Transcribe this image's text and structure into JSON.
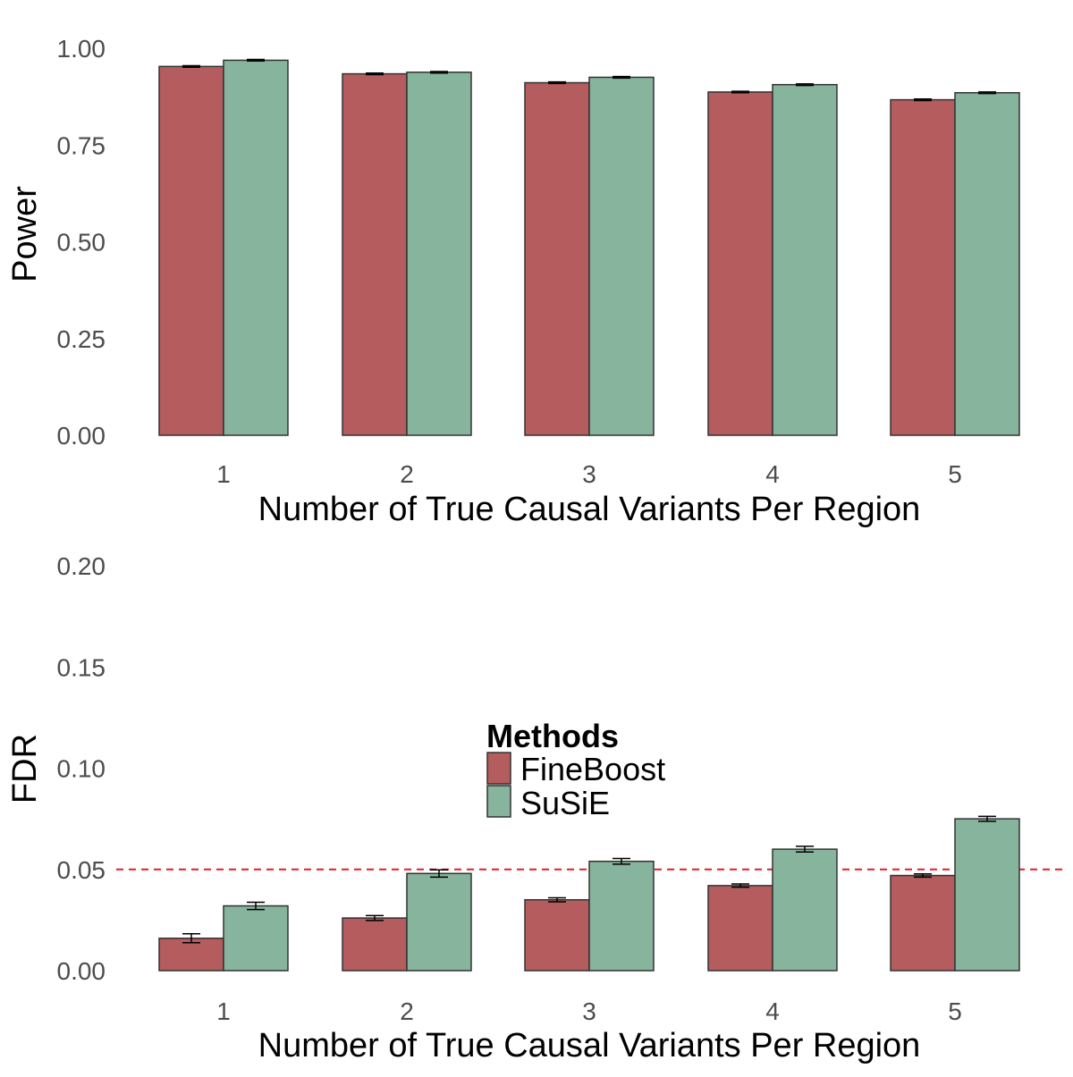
{
  "chart_data": [
    {
      "type": "bar",
      "categories": [
        "1",
        "2",
        "3",
        "4",
        "5"
      ],
      "series": [
        {
          "name": "FineBoost",
          "values": [
            0.953,
            0.934,
            0.911,
            0.887,
            0.867
          ],
          "errors": [
            0.002,
            0.002,
            0.002,
            0.002,
            0.002
          ]
        },
        {
          "name": "SuSiE",
          "values": [
            0.969,
            0.938,
            0.925,
            0.906,
            0.885
          ],
          "errors": [
            0.002,
            0.002,
            0.002,
            0.002,
            0.002
          ]
        }
      ],
      "xlabel": "Number of True Causal Variants Per Region",
      "ylabel": "Power",
      "ylim": [
        0,
        1
      ],
      "yticks": [
        "0.00",
        "0.25",
        "0.50",
        "0.75",
        "1.00"
      ],
      "grid": false
    },
    {
      "type": "bar",
      "categories": [
        "1",
        "2",
        "3",
        "4",
        "5"
      ],
      "series": [
        {
          "name": "FineBoost",
          "values": [
            0.016,
            0.026,
            0.035,
            0.042,
            0.047
          ],
          "errors": [
            0.0022,
            0.0012,
            0.001,
            0.0008,
            0.0008
          ]
        },
        {
          "name": "SuSiE",
          "values": [
            0.032,
            0.048,
            0.054,
            0.06,
            0.075
          ],
          "errors": [
            0.0018,
            0.0018,
            0.0014,
            0.0014,
            0.0012
          ]
        }
      ],
      "xlabel": "Number of True Causal Variants Per Region",
      "ylabel": "FDR",
      "ylim": [
        0,
        0.2
      ],
      "yticks": [
        "0.00",
        "0.05",
        "0.10",
        "0.15",
        "0.20"
      ],
      "reference_line": 0.05,
      "reference_line_color": "#e8192c",
      "grid": false
    }
  ],
  "legend": {
    "title": "Methods",
    "placement": "inside-center",
    "items": [
      {
        "label": "FineBoost",
        "color": "#b45c5e"
      },
      {
        "label": "SuSiE",
        "color": "#87b49c"
      }
    ]
  },
  "colors": {
    "FineBoost": "#b45c5e",
    "SuSiE": "#87b49c",
    "bar_outline": "#333333"
  }
}
